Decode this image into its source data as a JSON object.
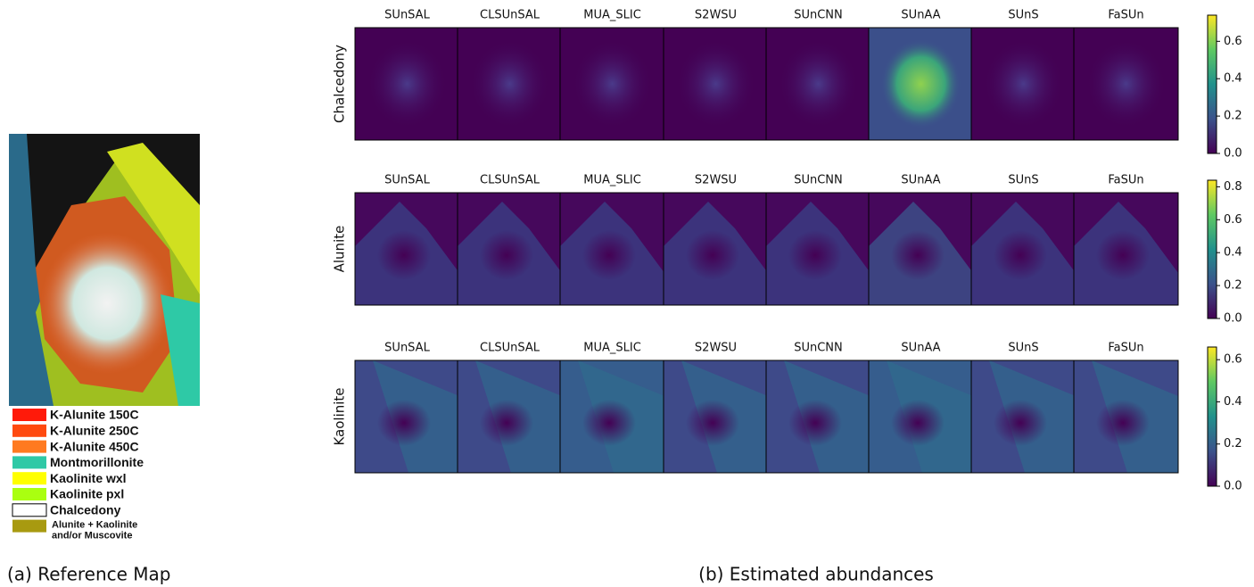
{
  "reference_map": {
    "caption": "(a) Reference Map",
    "legend": [
      {
        "label": "K-Alunite 150C",
        "color": "#ff1a0a"
      },
      {
        "label": "K-Alunite 250C",
        "color": "#ff4a10"
      },
      {
        "label": "K-Alunite 450C",
        "color": "#ff7a20"
      },
      {
        "label": "Montmorillonite",
        "color": "#2ec9a6"
      },
      {
        "label": "Kaolinite wxl",
        "color": "#ffff00"
      },
      {
        "label": "Kaolinite pxl",
        "color": "#aaff10"
      },
      {
        "label": "Chalcedony",
        "color": "#ffffff"
      },
      {
        "label": "Alunite + Kaolinite",
        "label2": "and/or Muscovite",
        "color": "#a89a10"
      }
    ]
  },
  "abundances": {
    "caption": "(b) Estimated abundances",
    "methods": [
      "SUnSAL",
      "CLSUnSAL",
      "MUA_SLIC",
      "S2WSU",
      "SUnCNN",
      "SUnAA",
      "SUnS",
      "FaSUn"
    ],
    "rows": [
      {
        "label": "Chalcedony",
        "colorbar": {
          "lim": [
            0,
            0.74
          ],
          "ticks": [
            {
              "value": 0,
              "label": "0.0"
            },
            0.2,
            0.4,
            0.6
          ]
        }
      },
      {
        "label": "Alunite",
        "colorbar": {
          "lim": [
            0,
            0.84
          ],
          "ticks": [
            {
              "value": 0,
              "label": "0.0"
            },
            0.2,
            0.4,
            0.6,
            0.8
          ]
        }
      },
      {
        "label": "Kaolinite",
        "colorbar": {
          "lim": [
            0,
            0.66
          ],
          "ticks": [
            {
              "value": 0,
              "label": "0.0"
            },
            0.2,
            0.4,
            0.6
          ]
        }
      }
    ]
  }
}
